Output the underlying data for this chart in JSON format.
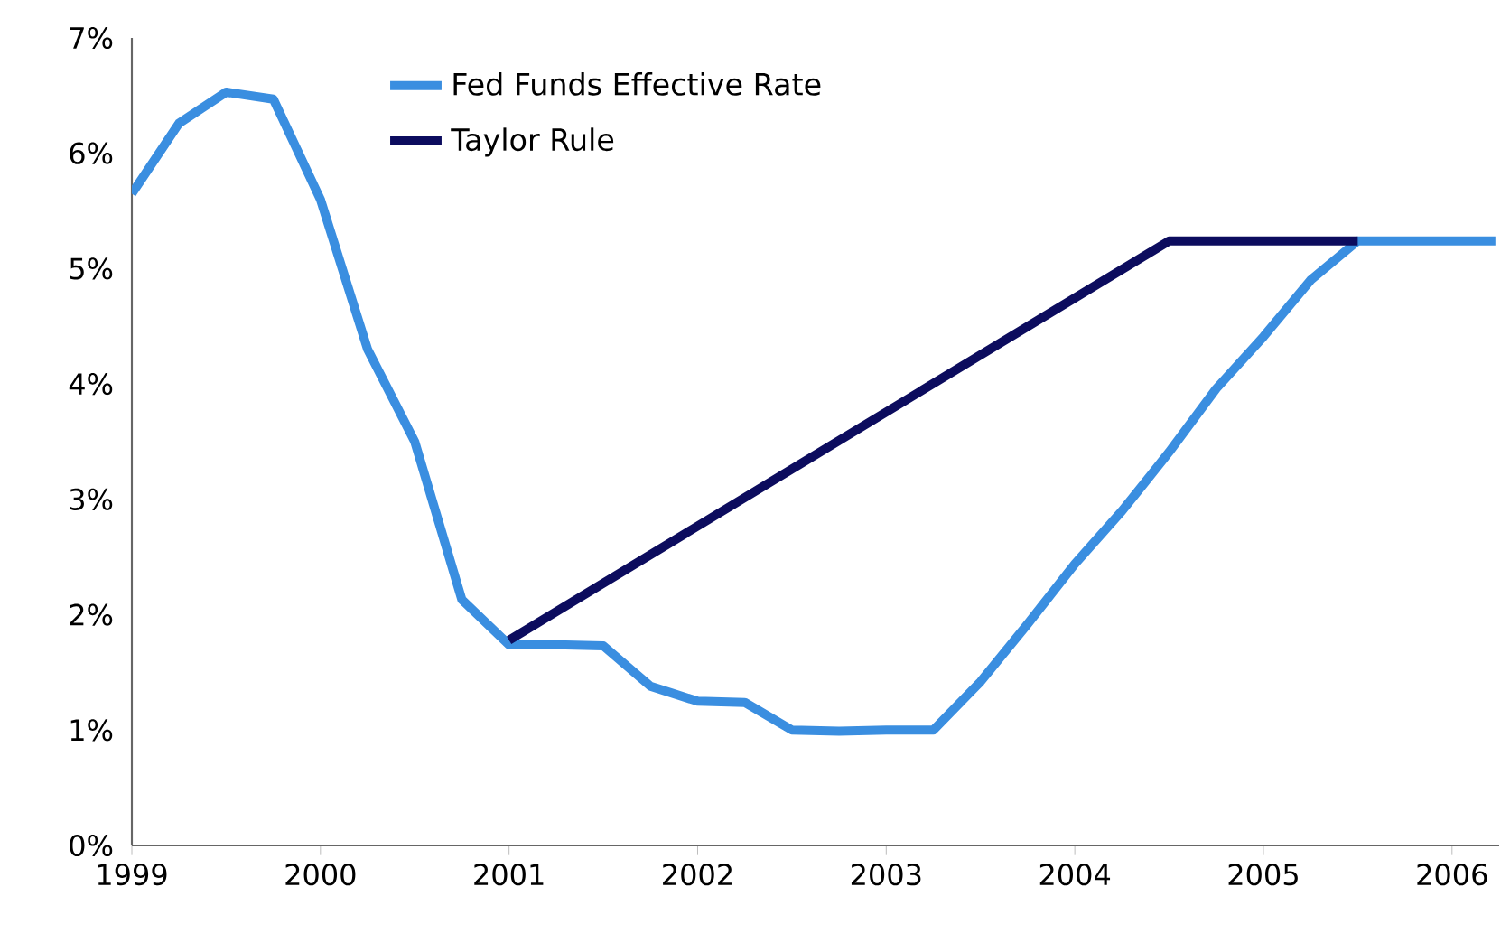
{
  "chart_data": {
    "type": "line",
    "x": [
      1999,
      1999.25,
      1999.5,
      1999.75,
      2000,
      2000.25,
      2000.5,
      2000.75,
      2001,
      2001.25,
      2001.5,
      2001.75,
      2002,
      2002.25,
      2002.5,
      2002.75,
      2003,
      2003.25,
      2003.5,
      2003.75,
      2004,
      2004.25,
      2004.5,
      2004.75,
      2005,
      2005.25,
      2005.5,
      2006.23
    ],
    "series": [
      {
        "name": "Fed Funds Effective Rate",
        "color": "#3a8ee0",
        "values": [
          5.65,
          6.26,
          6.53,
          6.47,
          5.6,
          4.3,
          3.5,
          2.13,
          1.74,
          1.74,
          1.73,
          1.38,
          1.25,
          1.24,
          1.0,
          0.99,
          1.0,
          1.0,
          1.42,
          1.92,
          2.44,
          2.9,
          3.41,
          3.96,
          4.41,
          4.9,
          5.24,
          5.24
        ]
      },
      {
        "name": "Taylor Rule",
        "color": "#0c0c5e",
        "x": [
          2001,
          2004.5,
          2005.5
        ],
        "values": [
          1.78,
          5.24,
          5.24
        ]
      }
    ],
    "xlim": [
      1999,
      2006.25
    ],
    "xticks": [
      1999,
      2000,
      2001,
      2002,
      2003,
      2004,
      2005,
      2006
    ],
    "ylim": [
      0,
      7
    ],
    "yticks": [
      {
        "value": 0,
        "label": "0%"
      },
      {
        "value": 1,
        "label": "1%"
      },
      {
        "value": 2,
        "label": "2%"
      },
      {
        "value": 3,
        "label": "3%"
      },
      {
        "value": 4,
        "label": "4%"
      },
      {
        "value": 5,
        "label": "5%"
      },
      {
        "value": 6,
        "label": "6%"
      },
      {
        "value": 7,
        "label": "7%"
      }
    ],
    "legend": "top",
    "marker": "none",
    "line_style": "solid"
  }
}
